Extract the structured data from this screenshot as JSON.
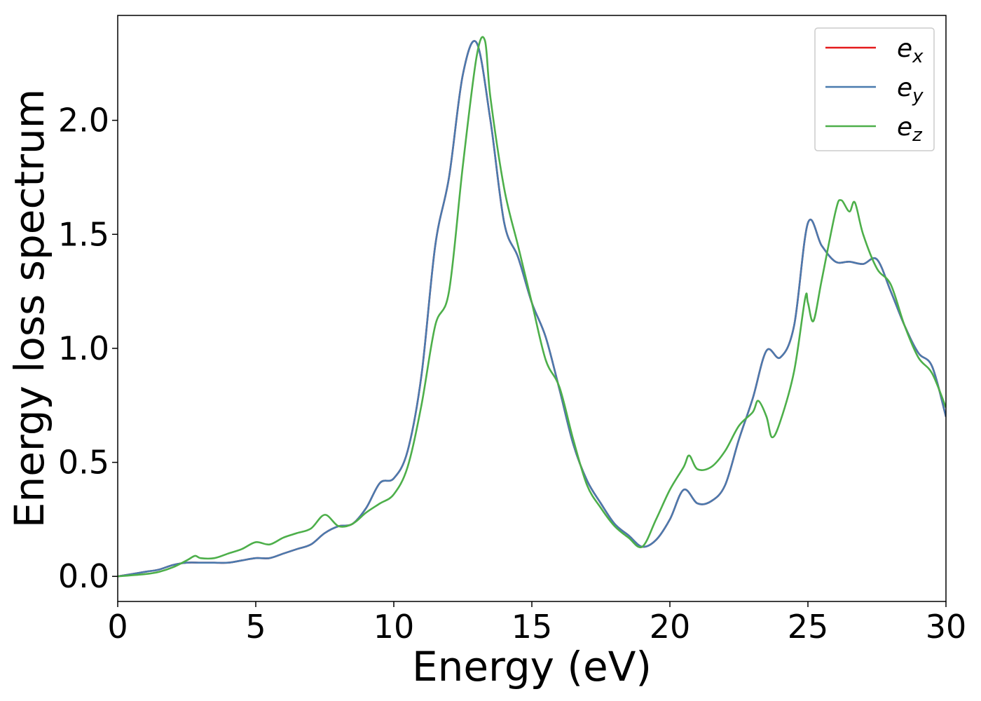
{
  "chart_data": {
    "type": "line",
    "xlabel": "Energy (eV)",
    "ylabel": "Energy loss spectrum",
    "xlim": [
      0,
      30
    ],
    "ylim": [
      -0.11,
      2.46
    ],
    "xticks": [
      0,
      5,
      10,
      15,
      20,
      25,
      30
    ],
    "xtick_labels": [
      "0",
      "5",
      "10",
      "15",
      "20",
      "25",
      "30"
    ],
    "yticks": [
      0.0,
      0.5,
      1.0,
      1.5,
      2.0
    ],
    "ytick_labels": [
      "0.0",
      "0.5",
      "1.0",
      "1.5",
      "2.0"
    ],
    "grid": false,
    "legend_position": "top-right",
    "series": [
      {
        "base": "e",
        "sub": "x",
        "color": "#e41a1c",
        "x": [
          0,
          1,
          1.5,
          2,
          2.5,
          3,
          3.5,
          4,
          4.5,
          5,
          5.5,
          6,
          6.5,
          7,
          7.5,
          8,
          8.5,
          9,
          9.5,
          10,
          10.5,
          11,
          11.5,
          12,
          12.5,
          13,
          13.5,
          14,
          14.5,
          15,
          15.5,
          16,
          16.5,
          17,
          17.5,
          18,
          18.5,
          19,
          19.5,
          20,
          20.5,
          21,
          21.5,
          22,
          22.5,
          23,
          23.5,
          24,
          24.5,
          25,
          25.5,
          26,
          26.5,
          27,
          27.5,
          28,
          28.5,
          29,
          29.5,
          30
        ],
        "y": [
          0.0,
          0.02,
          0.03,
          0.05,
          0.06,
          0.06,
          0.06,
          0.06,
          0.07,
          0.08,
          0.08,
          0.1,
          0.12,
          0.14,
          0.19,
          0.22,
          0.23,
          0.3,
          0.41,
          0.43,
          0.55,
          0.88,
          1.45,
          1.75,
          2.2,
          2.34,
          2.0,
          1.55,
          1.4,
          1.2,
          1.05,
          0.82,
          0.58,
          0.42,
          0.32,
          0.23,
          0.18,
          0.13,
          0.16,
          0.25,
          0.38,
          0.32,
          0.33,
          0.4,
          0.6,
          0.78,
          0.99,
          0.96,
          1.1,
          1.55,
          1.45,
          1.38,
          1.38,
          1.37,
          1.39,
          1.25,
          1.1,
          0.98,
          0.92,
          0.7
        ]
      },
      {
        "base": "e",
        "sub": "y",
        "color": "#4a7aae",
        "x": [
          0,
          1,
          1.5,
          2,
          2.5,
          3,
          3.5,
          4,
          4.5,
          5,
          5.5,
          6,
          6.5,
          7,
          7.5,
          8,
          8.5,
          9,
          9.5,
          10,
          10.5,
          11,
          11.5,
          12,
          12.5,
          13,
          13.5,
          14,
          14.5,
          15,
          15.5,
          16,
          16.5,
          17,
          17.5,
          18,
          18.5,
          19,
          19.5,
          20,
          20.5,
          21,
          21.5,
          22,
          22.5,
          23,
          23.5,
          24,
          24.5,
          25,
          25.5,
          26,
          26.5,
          27,
          27.5,
          28,
          28.5,
          29,
          29.5,
          30
        ],
        "y": [
          0.0,
          0.02,
          0.03,
          0.05,
          0.06,
          0.06,
          0.06,
          0.06,
          0.07,
          0.08,
          0.08,
          0.1,
          0.12,
          0.14,
          0.19,
          0.22,
          0.23,
          0.3,
          0.41,
          0.43,
          0.55,
          0.88,
          1.45,
          1.75,
          2.2,
          2.34,
          2.0,
          1.55,
          1.4,
          1.2,
          1.05,
          0.82,
          0.58,
          0.42,
          0.32,
          0.23,
          0.18,
          0.13,
          0.16,
          0.25,
          0.38,
          0.32,
          0.33,
          0.4,
          0.6,
          0.78,
          0.99,
          0.96,
          1.1,
          1.55,
          1.45,
          1.38,
          1.38,
          1.37,
          1.39,
          1.25,
          1.1,
          0.98,
          0.92,
          0.7
        ]
      },
      {
        "base": "e",
        "sub": "z",
        "color": "#4daf4a",
        "x": [
          0,
          1,
          1.5,
          2,
          2.5,
          2.8,
          3,
          3.5,
          4,
          4.5,
          5,
          5.5,
          6,
          6.5,
          7,
          7.5,
          8,
          8.5,
          9,
          9.5,
          10,
          10.5,
          11,
          11.5,
          12,
          12.5,
          13,
          13.3,
          13.5,
          14,
          14.5,
          15,
          15.5,
          16,
          16.5,
          17,
          17.5,
          18,
          18.5,
          19,
          19.5,
          20,
          20.5,
          20.7,
          21,
          21.5,
          22,
          22.5,
          23,
          23.2,
          23.5,
          23.7,
          24,
          24.5,
          24.9,
          25,
          25.2,
          25.5,
          26,
          26.2,
          26.5,
          26.7,
          27,
          27.5,
          28,
          28.5,
          29,
          29.5,
          30
        ],
        "y": [
          0.0,
          0.01,
          0.02,
          0.04,
          0.07,
          0.09,
          0.08,
          0.08,
          0.1,
          0.12,
          0.15,
          0.14,
          0.17,
          0.19,
          0.21,
          0.27,
          0.22,
          0.23,
          0.28,
          0.32,
          0.36,
          0.48,
          0.75,
          1.1,
          1.25,
          1.8,
          2.28,
          2.35,
          2.1,
          1.7,
          1.45,
          1.2,
          0.95,
          0.83,
          0.6,
          0.4,
          0.3,
          0.22,
          0.17,
          0.13,
          0.25,
          0.38,
          0.48,
          0.53,
          0.47,
          0.48,
          0.55,
          0.66,
          0.72,
          0.77,
          0.7,
          0.61,
          0.68,
          0.9,
          1.22,
          1.2,
          1.12,
          1.3,
          1.6,
          1.65,
          1.6,
          1.64,
          1.5,
          1.35,
          1.28,
          1.1,
          0.96,
          0.89,
          0.74
        ]
      }
    ]
  }
}
